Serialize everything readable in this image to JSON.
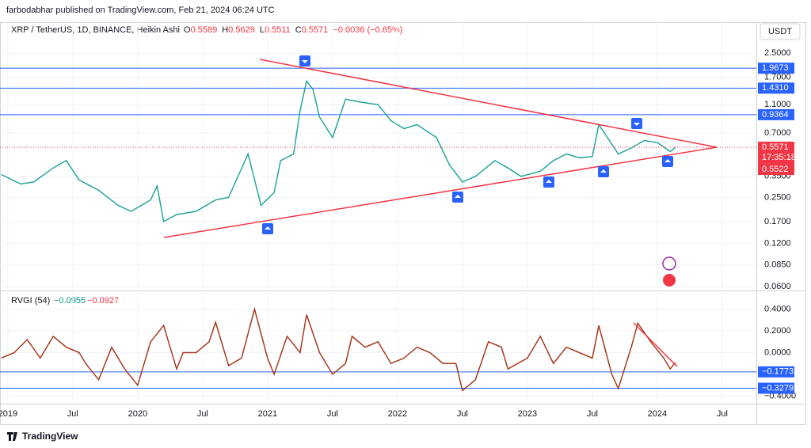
{
  "header": {
    "publisher": "farbodabhar published on TradingView.com, Feb 21, 2024 06:24 UTC",
    "logo": "TradingView"
  },
  "chart_data": {
    "type": "line",
    "symbol": "XRP / TetherUS, 1D, BINANCE, Heikin Ashi",
    "ohlc": [
      "O",
      "0.5589",
      "H",
      "0.5629",
      "L",
      "0.5511",
      "C",
      "0.5571",
      "−0.0036 (−0.65%)"
    ],
    "currency": "USDT",
    "log_scale": true,
    "x": [
      2018.95,
      2019.1,
      2019.2,
      2019.35,
      2019.45,
      2019.55,
      2019.7,
      2019.85,
      2019.95,
      2020.1,
      2020.15,
      2020.2,
      2020.3,
      2020.45,
      2020.6,
      2020.7,
      2020.85,
      2020.95,
      2021.05,
      2021.1,
      2021.2,
      2021.25,
      2021.3,
      2021.35,
      2021.4,
      2021.5,
      2021.6,
      2021.7,
      2021.85,
      2021.95,
      2022.05,
      2022.15,
      2022.3,
      2022.4,
      2022.5,
      2022.6,
      2022.75,
      2022.85,
      2022.95,
      2023.1,
      2023.2,
      2023.3,
      2023.4,
      2023.5,
      2023.55,
      2023.7,
      2023.8,
      2023.9,
      2024.0,
      2024.1,
      2024.14
    ],
    "series": [
      {
        "name": "XRP / TetherUS",
        "color": "#26a69a",
        "values": [
          0.36,
          0.31,
          0.32,
          0.4,
          0.45,
          0.33,
          0.28,
          0.22,
          0.2,
          0.24,
          0.3,
          0.17,
          0.19,
          0.2,
          0.24,
          0.25,
          0.5,
          0.22,
          0.27,
          0.45,
          0.5,
          1.0,
          1.6,
          1.4,
          0.9,
          0.65,
          1.2,
          1.15,
          1.1,
          0.85,
          0.75,
          0.8,
          0.65,
          0.42,
          0.32,
          0.35,
          0.45,
          0.4,
          0.35,
          0.38,
          0.45,
          0.5,
          0.47,
          0.48,
          0.8,
          0.5,
          0.55,
          0.62,
          0.6,
          0.52,
          0.5571
        ]
      }
    ],
    "xlim": [
      2018.94,
      2024.763
    ],
    "xticks": [
      2019,
      {
        "value": 2019.5,
        "label": "Jul"
      },
      2020,
      {
        "value": 2020.5,
        "label": "Jul"
      },
      2021,
      {
        "value": 2021.5,
        "label": "Jul"
      },
      2022,
      {
        "value": 2022.5,
        "label": "Jul"
      },
      2023,
      {
        "value": 2023.5,
        "label": "Jul"
      },
      2024,
      {
        "value": 2024.5,
        "label": "Jul"
      }
    ],
    "ylim": [
      0.058,
      4.0
    ],
    "yticks": [
      {
        "value": 2.5,
        "label": "2.5000"
      },
      {
        "value": 1.7,
        "label": "1.7000"
      },
      {
        "value": 1.1,
        "label": "1.1000"
      },
      {
        "value": 0.7,
        "label": "0.7000"
      },
      {
        "value": 0.35,
        "label": "0.3500"
      },
      {
        "value": 0.25,
        "label": "0.2500"
      },
      {
        "value": 0.17,
        "label": "0.1700"
      },
      {
        "value": 0.12,
        "label": "0.1200"
      },
      {
        "value": 0.085,
        "label": "0.0850"
      },
      {
        "value": 0.06,
        "label": "0.0600"
      }
    ],
    "levels": [
      1.9673,
      {
        "value": 1.431,
        "label": "1.4310"
      },
      0.9364
    ],
    "last_price": 0.5571,
    "countdown": "17:35:18",
    "prev_price": 0.5522,
    "indicator": {
      "name": "RVGI (54)",
      "readings": [
        "−0.0955",
        "−0.0927"
      ],
      "x": [
        2018.95,
        2019.05,
        2019.15,
        2019.25,
        2019.35,
        2019.45,
        2019.55,
        2019.6,
        2019.7,
        2019.8,
        2019.9,
        2020.0,
        2020.1,
        2020.2,
        2020.3,
        2020.35,
        2020.45,
        2020.55,
        2020.6,
        2020.7,
        2020.8,
        2020.9,
        2021.0,
        2021.05,
        2021.15,
        2021.25,
        2021.3,
        2021.4,
        2021.5,
        2021.6,
        2021.65,
        2021.75,
        2021.85,
        2021.95,
        2022.05,
        2022.15,
        2022.25,
        2022.35,
        2022.45,
        2022.5,
        2022.6,
        2022.7,
        2022.8,
        2022.85,
        2023.0,
        2023.1,
        2023.2,
        2023.3,
        2023.4,
        2023.5,
        2023.55,
        2023.65,
        2023.7,
        2023.8,
        2023.85,
        2023.95,
        2024.05,
        2024.1,
        2024.14
      ],
      "series": [
        {
          "name": "RVGI",
          "color": "#a63a1e",
          "values": [
            -0.05,
            0.0,
            0.12,
            -0.05,
            0.15,
            0.05,
            0.0,
            -0.1,
            -0.25,
            0.05,
            -0.15,
            -0.3,
            0.1,
            0.25,
            -0.15,
            0.0,
            0.0,
            0.1,
            0.28,
            -0.12,
            -0.05,
            0.4,
            -0.05,
            -0.2,
            0.15,
            0.0,
            0.35,
            0.0,
            -0.2,
            -0.1,
            0.15,
            0.05,
            0.1,
            -0.1,
            -0.05,
            0.05,
            0.0,
            -0.1,
            -0.1,
            -0.35,
            -0.25,
            0.1,
            0.05,
            -0.15,
            -0.05,
            0.15,
            -0.1,
            0.05,
            0.0,
            -0.05,
            0.25,
            -0.2,
            -0.33,
            0.05,
            0.27,
            0.1,
            -0.05,
            -0.15,
            -0.09
          ]
        }
      ],
      "ylim": [
        -0.47,
        0.55
      ],
      "yticks": [
        {
          "value": 0.4,
          "label": "0.4000"
        },
        {
          "value": 0.2,
          "label": "0.2000"
        },
        {
          "value": 0,
          "label": "0.0000"
        },
        {
          "value": -0.4,
          "label": "−0.4000"
        }
      ],
      "levels": [
        {
          "value": -0.1773,
          "label": "−0.1773"
        },
        {
          "value": -0.3279,
          "label": "−0.3279"
        }
      ]
    }
  }
}
